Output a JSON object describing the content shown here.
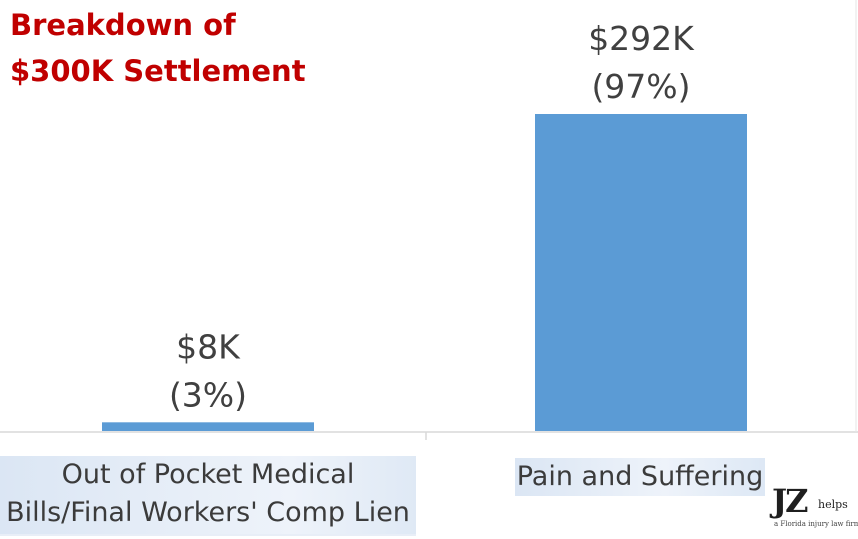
{
  "chart_data": {
    "type": "bar",
    "title_lines": [
      "Breakdown of",
      "$300K Settlement"
    ],
    "categories": [
      [
        "Out of Pocket Medical",
        "Bills/Final Workers' Comp Lien"
      ],
      [
        "Pain and Suffering"
      ]
    ],
    "values": [
      8,
      292
    ],
    "data_labels": [
      [
        "$8K",
        "(3%)"
      ],
      [
        "$292K",
        "(97%)"
      ]
    ],
    "unit": "$K",
    "ylim": [
      0,
      300
    ],
    "grid": false,
    "legend": "none",
    "bar_color": "#5b9bd5"
  },
  "logo": {
    "text": "JZ",
    "helps": "helps",
    "tagline": "a Florida injury law firm"
  }
}
